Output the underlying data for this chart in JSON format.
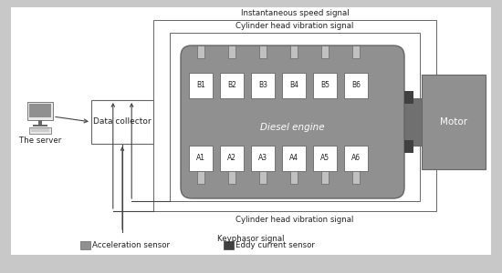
{
  "bg_color": "#c8c8c8",
  "white": "#ffffff",
  "engine_body_color": "#909090",
  "sensor_color": "#c0c0c0",
  "motor_color": "#909090",
  "motor_connector_color": "#707070",
  "dark_sensor_color": "#404040",
  "box_edge_color": "#666666",
  "arrow_color": "#444444",
  "text_color": "#222222",
  "b_labels": [
    "B1",
    "B2",
    "B3",
    "B4",
    "B5",
    "B6"
  ],
  "a_labels": [
    "A1",
    "A2",
    "A3",
    "A4",
    "A5",
    "A6"
  ],
  "signal_top": "Instantaneous speed signal",
  "signal_mid": "Cylinder head vibration signal",
  "signal_bot": "Cylinder head vibration signal",
  "signal_keyphasor": "Keyphasor signal",
  "label_accel": "Acceleration sensor",
  "label_eddy": "Eddy current sensor",
  "label_data": "Data collector",
  "label_diesel": "Diesel engine",
  "label_motor": "Motor",
  "label_server": "The server"
}
